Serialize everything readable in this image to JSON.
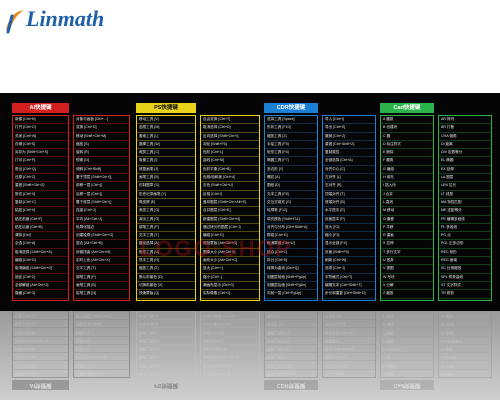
{
  "brand": {
    "name": "Linmath",
    "color": "#1d5fa8"
  },
  "watermark": {
    "text": "LOGO·SHOP"
  },
  "sections": [
    {
      "id": "ai",
      "title": "AI快捷键",
      "color": "#d1201f",
      "text_color": "#ffffff",
      "rows_left": [
        "AI快捷键",
        "新建 [Ctrl+N]",
        "打开 [Ctrl+O]",
        "关闭 [Ctrl+W]",
        "存储 [Ctrl+S]",
        "另存为 [Shift+Ctrl+S]",
        "打印 [Ctrl+P]",
        "退出 [Ctrl+Q]",
        "还原 [Ctrl+Z]",
        "重做 [Shift+Ctrl+Z]",
        "剪切 [Ctrl+X]",
        "复制 [Ctrl+C]",
        "粘贴 [Ctrl+V]",
        "贴在前面 [Ctrl+F]",
        "贴在后面 [Ctrl+B]",
        "清除 [Del]",
        "全选 [Ctrl+A]",
        "取消选择 [Shift+Ctrl+A]",
        "编组 [Ctrl+G]",
        "取消编组 [Shift+Ctrl+G]",
        "锁定 [Ctrl+2]",
        "全部解锁 [Alt+Ctrl+2]",
        "隐藏 [Ctrl+3]",
        "显示全部 [Alt+Ctrl+3]",
        "建立蒙版 [Ctrl+7]"
      ],
      "rows_right": [
        "对象与画板 [Ctrl+…]",
        "变换 [Ctrl+D]",
        "移动 [Shift+Ctrl+M]",
        "缩放 [S]",
        "旋转 [R]",
        "镜像 [O]",
        "倾斜 [Ctrl+Shift]",
        "置于顶层 [Shift+Ctrl+]]",
        "前移一层 [Ctrl+]]",
        "后移一层 [Ctrl+[]",
        "置于底层 [Shift+Ctrl+[]",
        "连接 [Ctrl+J]",
        "平均 [Alt+Ctrl+J]",
        "轮廓化描边",
        "创建轮廓 [Shift+Ctrl+O]",
        "混合 [Alt+Ctrl+B]",
        "封套扭曲 [Alt+Ctrl+M]",
        "实时上色 [Alt+Ctrl+X]",
        "文字工具 [T]",
        "钢笔工具 [P]",
        "画笔工具 [B]",
        "铅笔工具 [N]",
        "橡皮擦 [Shift+E]",
        "剪刀 [C]",
        "渐变 [G]"
      ]
    },
    {
      "id": "ps",
      "title": "PS快捷键",
      "color": "#e8d21a",
      "text_color": "#111111",
      "rows_left": [
        "PS快捷键",
        "移动工具 [V]",
        "选框工具 [M]",
        "套索工具 [L]",
        "魔棒工具 [W]",
        "裁剪工具 [C]",
        "吸管工具 [I]",
        "修复画笔 [J]",
        "画笔工具 [B]",
        "仿制图章 [S]",
        "历史记录画笔 [Y]",
        "橡皮擦 [E]",
        "渐变工具 [G]",
        "减淡工具 [O]",
        "钢笔工具 [P]",
        "文字工具 [T]",
        "路径选择 [A]",
        "矩形工具 [U]",
        "抓手工具 [H]",
        "缩放工具 [Z]",
        "默认前景色 [D]",
        "切换前景色 [X]",
        "快速蒙版 [Q]",
        "屏幕模式 [F]",
        "隐藏面板 [Tab]"
      ],
      "rows_right": [
        "自由变换 [Ctrl+T]",
        "取消选择 [Ctrl+D]",
        "反向选择 [Shift+Ctrl+I]",
        "羽化 [Shift+F6]",
        "色阶 [Ctrl+L]",
        "曲线 [Ctrl+M]",
        "色彩平衡 [Ctrl+B]",
        "色相/饱和度 [Ctrl+U]",
        "去色 [Shift+Ctrl+U]",
        "反相 [Ctrl+I]",
        "盖印图层 [Shift+Ctrl+Alt+E]",
        "合并图层 [Ctrl+E]",
        "新建图层 [Shift+Ctrl+N]",
        "通过拷贝的图层 [Ctrl+J]",
        "编组 [Ctrl+G]",
        "剪贴蒙版 [Alt+Ctrl+G]",
        "图像大小 [Alt+Ctrl+I]",
        "画布大小 [Alt+Ctrl+C]",
        "放大 [Ctrl++]",
        "缩小 [Ctrl+-]",
        "满画布显示 [Ctrl+0]",
        "实际像素 [Ctrl+1]",
        "标尺 [Ctrl+R]",
        "参考线 [Ctrl+;]",
        "存储为Web [Alt+Shift+Ctrl+S]"
      ]
    },
    {
      "id": "cdr",
      "title": "CDR快捷键",
      "color": "#1b7fd6",
      "text_color": "#ffffff",
      "rows_left": [
        "CDR快捷键",
        "选择工具 [Space]",
        "形状工具 [F10]",
        "缩放工具 [Z]",
        "手绘工具 [F5]",
        "矩形工具 [F6]",
        "椭圆工具 [F7]",
        "多边形 [Y]",
        "螺纹 [A]",
        "图纸 [D]",
        "文本工具 [F8]",
        "交互式填充 [G]",
        "轮廓笔 [F12]",
        "填充颜色 [Shift+F11]",
        "对齐与分布 [Ctrl+Shift+A]",
        "群组 [Ctrl+G]",
        "取消群组 [Ctrl+U]",
        "结合 [Ctrl+L]",
        "拆分 [Ctrl+K]",
        "转换为曲线 [Ctrl+Q]",
        "到图层前面 [Shift+PgUp]",
        "到图层后面 [Shift+PgDn]",
        "向前一层 [Ctrl+PgUp]",
        "向后一层 [Ctrl+PgDn]",
        "再制 [Ctrl+D]"
      ],
      "rows_right": [
        "导入 [Ctrl+I]",
        "导出 [Ctrl+E]",
        "撤销 [Ctrl+Z]",
        "重做 [Ctrl+Shift+Z]",
        "复制属性",
        "全部选择 [Ctrl+A]",
        "对齐中心 [C]",
        "左对齐 [L]",
        "右对齐 [R]",
        "顶端对齐 [T]",
        "底端对齐 [B]",
        "水平居中 [E]",
        "页面居中 [P]",
        "放大 [F2]",
        "缩小 [F3]",
        "显示全部 [F4]",
        "页面 [Shift+F4]",
        "刷新 [Ctrl+W]",
        "选项 [Ctrl+J]",
        "字符格式 [Ctrl+T]",
        "编辑文本 [Ctrl+Shift+T]",
        "步长和重复 [Ctrl+Shift+D]",
        "变换 [Alt+F7]",
        "转换 [Alt+F9]",
        "视图管理 [Ctrl+F2]"
      ]
    },
    {
      "id": "cad",
      "title": "Cad快捷键",
      "color": "#2bb24a",
      "text_color": "#ffffff",
      "rows_left": [
        "Cad快捷键",
        "A 圆弧",
        "B 创建块",
        "C 圆",
        "D 标注样式",
        "E 删除",
        "F 圆角",
        "G 编组",
        "H 填充",
        "I 插入块",
        "J 合并",
        "L 直线",
        "M 移动",
        "O 偏移",
        "P 平移",
        "R 重画",
        "S 拉伸",
        "T 多行文字",
        "U 放弃",
        "V 视图",
        "W 写块",
        "X 分解",
        "Z 缩放",
        "CO 复制",
        "MI 镜像",
        "RO 旋转"
      ],
      "rows_right": [
        "AR 阵列",
        "BR 打断",
        "CHA 倒角",
        "DI 距离",
        "DIV 定数等分",
        "EL 椭圆",
        "EX 延伸",
        "LA 图层",
        "LEN 拉长",
        "LT 线型",
        "MA 特性匹配",
        "ME 定距等分",
        "PE 编辑多段线",
        "PL 多段线",
        "PO 点",
        "POL 正多边形",
        "REC 矩形",
        "REG 面域",
        "SC 比例缩放",
        "SPL 样条曲线",
        "ST 文字样式",
        "TR 修剪",
        "XL 构造线",
        "DLI 线性标注",
        "DRA 半径标注"
      ]
    }
  ]
}
